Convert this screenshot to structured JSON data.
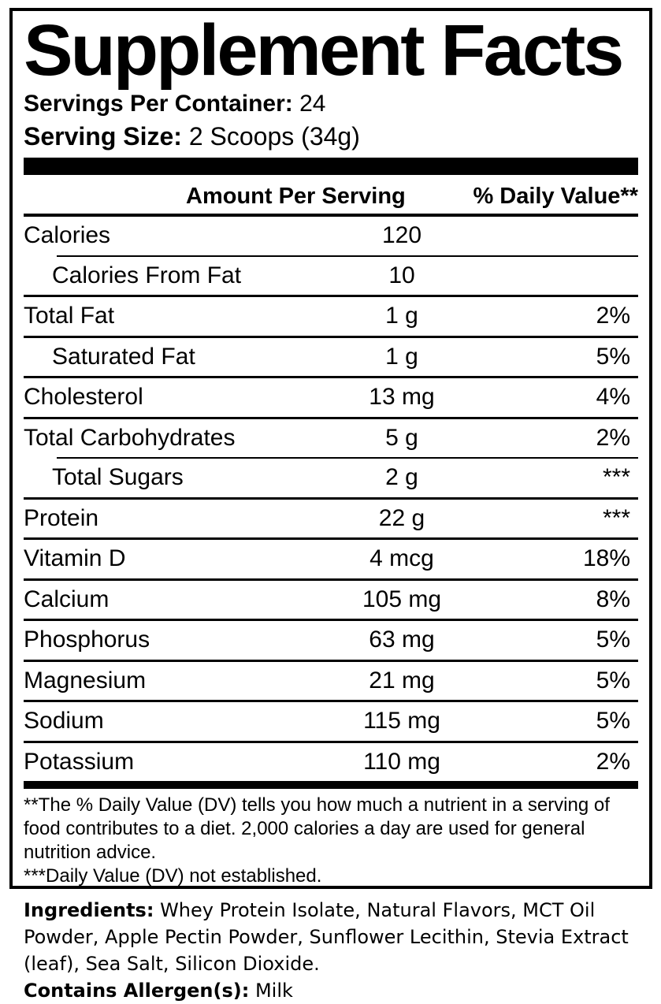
{
  "label": {
    "title": "Supplement Facts",
    "servings_per_container_label": "Servings Per Container:",
    "servings_per_container_value": "24",
    "serving_size_label": "Serving Size:",
    "serving_size_value": "2 Scoops (34g)",
    "columns": {
      "amount": "Amount Per Serving",
      "daily_value": "% Daily Value**"
    },
    "rows": [
      {
        "name": "Calories",
        "amount": "120",
        "dv": ""
      },
      {
        "name": "Calories From Fat",
        "amount": "10",
        "dv": ""
      },
      {
        "name": "Total Fat",
        "amount": "1 g",
        "dv": "2%"
      },
      {
        "name": "Saturated Fat",
        "amount": "1 g",
        "dv": "5%"
      },
      {
        "name": "Cholesterol",
        "amount": "13 mg",
        "dv": "4%"
      },
      {
        "name": "Total Carbohydrates",
        "amount": "5 g",
        "dv": "2%"
      },
      {
        "name": "Total Sugars",
        "amount": "2 g",
        "dv": "***"
      },
      {
        "name": "Protein",
        "amount": "22 g",
        "dv": "***"
      },
      {
        "name": "Vitamin D",
        "amount": "4 mcg",
        "dv": "18%"
      },
      {
        "name": "Calcium",
        "amount": "105 mg",
        "dv": "8%"
      },
      {
        "name": "Phosphorus",
        "amount": "63 mg",
        "dv": "5%"
      },
      {
        "name": "Magnesium",
        "amount": "21 mg",
        "dv": "5%"
      },
      {
        "name": "Sodium",
        "amount": "115 mg",
        "dv": "5%"
      },
      {
        "name": "Potassium",
        "amount": "110 mg",
        "dv": "2%"
      }
    ],
    "footnotes": {
      "daily_value_note": "**The % Daily Value (DV) tells you how much a nutrient in a serving of food contributes to a diet. 2,000 calories a day are used for general nutrition advice.",
      "not_established_note": "***Daily Value (DV) not established."
    }
  },
  "ingredients": {
    "label": "Ingredients:",
    "value": " Whey Protein Isolate, Natural Flavors, MCT Oil Powder, Apple Pectin Powder, Sunflower Lecithin, Stevia Extract (leaf), Sea Salt, Silicon Dioxide.",
    "allergen_label": "Contains Allergen(s):",
    "allergen_value": " Milk"
  },
  "colors": {
    "text": "#000000",
    "background": "#ffffff",
    "rule": "#000000"
  }
}
